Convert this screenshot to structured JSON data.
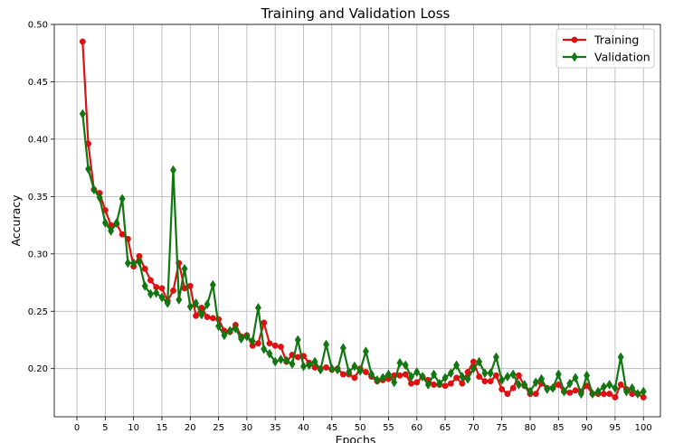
{
  "chart_data": {
    "type": "line",
    "title": "Training and Validation Loss",
    "xlabel": "Epochs",
    "ylabel": "Accuracy",
    "xlim": [
      -4,
      103
    ],
    "ylim": [
      0.158,
      0.5
    ],
    "xticks": [
      0,
      5,
      10,
      15,
      20,
      25,
      30,
      35,
      40,
      45,
      50,
      55,
      60,
      65,
      70,
      75,
      80,
      85,
      90,
      95,
      100
    ],
    "yticks": [
      0.2,
      0.25,
      0.3,
      0.35,
      0.4,
      0.45,
      0.5
    ],
    "grid": true,
    "legend_position": "top-right",
    "x": [
      1,
      2,
      3,
      4,
      5,
      6,
      7,
      8,
      9,
      10,
      11,
      12,
      13,
      14,
      15,
      16,
      17,
      18,
      19,
      20,
      21,
      22,
      23,
      24,
      25,
      26,
      27,
      28,
      29,
      30,
      31,
      32,
      33,
      34,
      35,
      36,
      37,
      38,
      39,
      40,
      41,
      42,
      43,
      44,
      45,
      46,
      47,
      48,
      49,
      50,
      51,
      52,
      53,
      54,
      55,
      56,
      57,
      58,
      59,
      60,
      61,
      62,
      63,
      64,
      65,
      66,
      67,
      68,
      69,
      70,
      71,
      72,
      73,
      74,
      75,
      76,
      77,
      78,
      79,
      80,
      81,
      82,
      83,
      84,
      85,
      86,
      87,
      88,
      89,
      90,
      91,
      92,
      93,
      94,
      95,
      96,
      97,
      98,
      99,
      100
    ],
    "series": [
      {
        "name": "Training",
        "color": "#dd1111",
        "marker": "circle",
        "values": [
          0.485,
          0.396,
          0.356,
          0.353,
          0.338,
          0.325,
          0.326,
          0.317,
          0.313,
          0.289,
          0.298,
          0.287,
          0.277,
          0.271,
          0.27,
          0.259,
          0.268,
          0.292,
          0.27,
          0.272,
          0.246,
          0.253,
          0.245,
          0.244,
          0.243,
          0.233,
          0.232,
          0.238,
          0.228,
          0.229,
          0.22,
          0.222,
          0.24,
          0.222,
          0.22,
          0.219,
          0.206,
          0.212,
          0.21,
          0.211,
          0.205,
          0.201,
          0.2,
          0.201,
          0.199,
          0.2,
          0.195,
          0.195,
          0.192,
          0.2,
          0.197,
          0.193,
          0.189,
          0.19,
          0.191,
          0.194,
          0.194,
          0.195,
          0.187,
          0.188,
          0.193,
          0.19,
          0.186,
          0.186,
          0.185,
          0.187,
          0.192,
          0.187,
          0.197,
          0.206,
          0.193,
          0.189,
          0.189,
          0.194,
          0.182,
          0.178,
          0.183,
          0.194,
          0.185,
          0.178,
          0.178,
          0.187,
          0.183,
          0.183,
          0.186,
          0.18,
          0.179,
          0.181,
          0.18,
          0.185,
          0.178,
          0.178,
          0.178,
          0.178,
          0.175,
          0.186,
          0.182,
          0.178,
          0.178,
          0.175
        ]
      },
      {
        "name": "Validation",
        "color": "#117711",
        "marker": "diamond",
        "values": [
          0.422,
          0.374,
          0.356,
          0.349,
          0.327,
          0.32,
          0.327,
          0.348,
          0.292,
          0.292,
          0.293,
          0.272,
          0.265,
          0.266,
          0.262,
          0.257,
          0.373,
          0.26,
          0.287,
          0.254,
          0.257,
          0.247,
          0.256,
          0.273,
          0.237,
          0.229,
          0.233,
          0.235,
          0.226,
          0.228,
          0.224,
          0.253,
          0.217,
          0.213,
          0.206,
          0.208,
          0.207,
          0.204,
          0.225,
          0.202,
          0.203,
          0.206,
          0.199,
          0.221,
          0.2,
          0.199,
          0.218,
          0.197,
          0.202,
          0.198,
          0.215,
          0.195,
          0.19,
          0.192,
          0.195,
          0.188,
          0.205,
          0.203,
          0.193,
          0.197,
          0.193,
          0.186,
          0.195,
          0.187,
          0.192,
          0.196,
          0.203,
          0.193,
          0.191,
          0.2,
          0.206,
          0.196,
          0.196,
          0.21,
          0.19,
          0.193,
          0.195,
          0.186,
          0.186,
          0.18,
          0.188,
          0.191,
          0.182,
          0.183,
          0.195,
          0.18,
          0.187,
          0.192,
          0.178,
          0.194,
          0.178,
          0.18,
          0.184,
          0.186,
          0.183,
          0.21,
          0.18,
          0.183,
          0.178,
          0.18
        ]
      }
    ]
  }
}
